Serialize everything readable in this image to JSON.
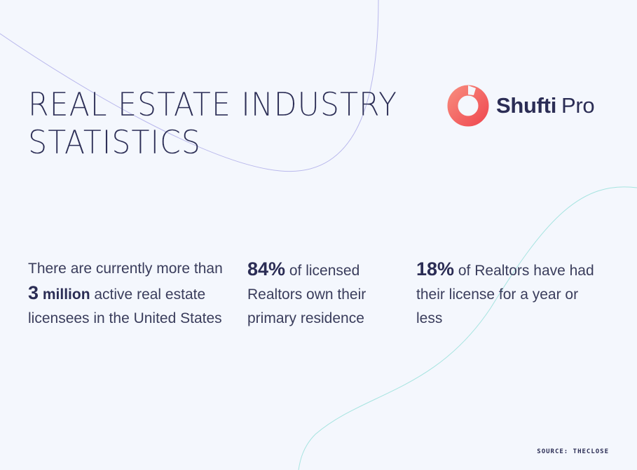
{
  "title": {
    "line1": "REAL ESTATE INDUSTRY",
    "line2": "STATISTICS"
  },
  "logo": {
    "bold": "Shufti",
    "light": "Pro",
    "icon": "ring-logo-icon",
    "colors": [
      "#f04e54",
      "#f7867a"
    ]
  },
  "stats": [
    {
      "before": "There are currently more than ",
      "highlight_number": "3",
      "highlight_word": "million",
      "after": " active real estate licensees in the United States"
    },
    {
      "highlight_number": "84%",
      "after": " of licensed Realtors own their primary residence"
    },
    {
      "highlight_number": "18%",
      "after": " of Realtors have had their license for a year or less"
    }
  ],
  "source": "SOURCE: THECLOSE",
  "colors": {
    "background": "#f4f7fd",
    "text": "#2b2d55",
    "curve_purple": "#b9b8ec",
    "curve_teal": "#a6e4e0"
  }
}
